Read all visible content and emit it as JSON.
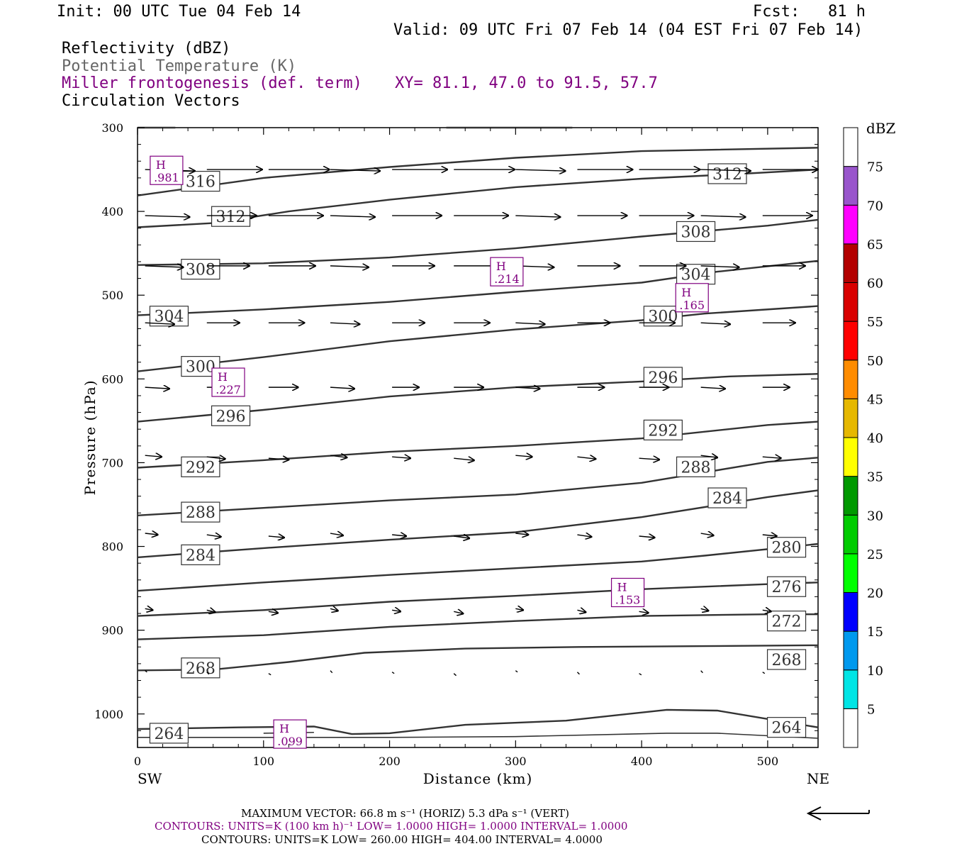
{
  "header": {
    "init": "Init: 00 UTC Tue 04 Feb 14",
    "fcst_label": "Fcst:",
    "fcst_value": "81 h",
    "valid": "Valid: 09 UTC Fri 07 Feb 14 (04 EST Fri 07 Feb 14)"
  },
  "fields": {
    "reflectivity": "Reflectivity (dBZ)",
    "theta": "Potential Temperature (K)",
    "miller": "Miller frontogenesis (def. term)",
    "xy": "XY=  81.1, 47.0 to  91.5, 57.7",
    "vectors": "Circulation Vectors"
  },
  "colors": {
    "contour": "#333333",
    "purple": "#800080",
    "theta_gray": "#666666"
  },
  "chart_data": {
    "type": "cross-section",
    "ylabel": "Pressure (hPa)",
    "xlabel": "Distance (km)",
    "x_left_label": "SW",
    "x_right_label": "NE",
    "xlim": [
      0,
      540
    ],
    "ylim": [
      300,
      1040
    ],
    "x_ticks": [
      0,
      100,
      200,
      300,
      400,
      500
    ],
    "y_ticks": [
      300,
      400,
      500,
      600,
      700,
      800,
      900,
      1000
    ],
    "theta_contours": [
      {
        "label": "316",
        "pts": [
          [
            0,
            381
          ],
          [
            100,
            360
          ],
          [
            200,
            347
          ],
          [
            300,
            336
          ],
          [
            400,
            328
          ],
          [
            540,
            324
          ]
        ],
        "boxes": [
          [
            50,
            364
          ]
        ]
      },
      {
        "label": "312",
        "pts": [
          [
            0,
            419
          ],
          [
            60,
            414
          ],
          [
            120,
            400
          ],
          [
            200,
            386
          ],
          [
            300,
            371
          ],
          [
            400,
            361
          ],
          [
            480,
            355
          ],
          [
            540,
            350
          ]
        ],
        "boxes": [
          [
            74,
            406
          ],
          [
            468,
            355
          ]
        ]
      },
      {
        "label": "308",
        "pts": [
          [
            0,
            464
          ],
          [
            100,
            462
          ],
          [
            200,
            455
          ],
          [
            300,
            444
          ],
          [
            400,
            430
          ],
          [
            500,
            417
          ],
          [
            540,
            410
          ]
        ],
        "boxes": [
          [
            50,
            469
          ],
          [
            443,
            424
          ]
        ]
      },
      {
        "label": "304",
        "pts": [
          [
            0,
            524
          ],
          [
            100,
            517
          ],
          [
            200,
            508
          ],
          [
            300,
            496
          ],
          [
            400,
            485
          ],
          [
            460,
            472
          ],
          [
            540,
            459
          ]
        ],
        "boxes": [
          [
            25,
            525
          ],
          [
            443,
            475
          ]
        ]
      },
      {
        "label": "300",
        "pts": [
          [
            0,
            591
          ],
          [
            100,
            574
          ],
          [
            200,
            555
          ],
          [
            300,
            541
          ],
          [
            400,
            530
          ],
          [
            450,
            522
          ],
          [
            540,
            513
          ]
        ],
        "boxes": [
          [
            50,
            585
          ],
          [
            417,
            525
          ]
        ]
      },
      {
        "label": "296",
        "pts": [
          [
            0,
            651
          ],
          [
            100,
            637
          ],
          [
            200,
            621
          ],
          [
            300,
            610
          ],
          [
            400,
            603
          ],
          [
            470,
            597
          ],
          [
            540,
            594
          ]
        ],
        "boxes": [
          [
            74,
            644
          ],
          [
            417,
            598
          ]
        ]
      },
      {
        "label": "292",
        "pts": [
          [
            0,
            706
          ],
          [
            100,
            697
          ],
          [
            200,
            687
          ],
          [
            300,
            680
          ],
          [
            400,
            671
          ],
          [
            500,
            655
          ],
          [
            540,
            651
          ]
        ],
        "boxes": [
          [
            50,
            705
          ],
          [
            417,
            661
          ]
        ]
      },
      {
        "label": "288",
        "pts": [
          [
            0,
            763
          ],
          [
            100,
            754
          ],
          [
            200,
            745
          ],
          [
            300,
            738
          ],
          [
            400,
            724
          ],
          [
            500,
            699
          ],
          [
            540,
            694
          ]
        ],
        "boxes": [
          [
            50,
            759
          ],
          [
            443,
            705
          ]
        ]
      },
      {
        "label": "284",
        "pts": [
          [
            0,
            813
          ],
          [
            100,
            802
          ],
          [
            200,
            792
          ],
          [
            300,
            783
          ],
          [
            400,
            765
          ],
          [
            500,
            741
          ],
          [
            540,
            733
          ]
        ],
        "boxes": [
          [
            50,
            810
          ],
          [
            468,
            742
          ]
        ]
      },
      {
        "label": "280",
        "pts": [
          [
            0,
            853
          ],
          [
            100,
            843
          ],
          [
            200,
            834
          ],
          [
            300,
            826
          ],
          [
            400,
            818
          ],
          [
            450,
            811
          ],
          [
            540,
            797
          ]
        ],
        "boxes": [
          [
            515,
            801
          ]
        ]
      },
      {
        "label": "276",
        "pts": [
          [
            0,
            883
          ],
          [
            100,
            876
          ],
          [
            200,
            866
          ],
          [
            300,
            859
          ],
          [
            400,
            851
          ],
          [
            500,
            845
          ],
          [
            540,
            843
          ]
        ],
        "boxes": [
          [
            515,
            848
          ]
        ]
      },
      {
        "label": "272",
        "pts": [
          [
            0,
            911
          ],
          [
            100,
            906
          ],
          [
            200,
            896
          ],
          [
            300,
            889
          ],
          [
            400,
            883
          ],
          [
            500,
            881
          ],
          [
            540,
            881
          ]
        ],
        "boxes": [
          [
            515,
            889
          ]
        ]
      },
      {
        "label": "268",
        "pts": [
          [
            0,
            948
          ],
          [
            60,
            947
          ],
          [
            120,
            938
          ],
          [
            180,
            927
          ],
          [
            260,
            922
          ],
          [
            350,
            920
          ],
          [
            450,
            919
          ],
          [
            540,
            918
          ]
        ],
        "boxes": [
          [
            50,
            945
          ],
          [
            515,
            935
          ]
        ]
      },
      {
        "label": "264",
        "pts": [
          [
            0,
            1018
          ],
          [
            80,
            1016
          ],
          [
            140,
            1015
          ],
          [
            170,
            1024
          ],
          [
            200,
            1023
          ],
          [
            260,
            1013
          ],
          [
            340,
            1008
          ],
          [
            420,
            995
          ],
          [
            460,
            996
          ],
          [
            540,
            1016
          ]
        ],
        "boxes": [
          [
            25,
            1023
          ],
          [
            515,
            1016
          ]
        ]
      }
    ],
    "miller_highs": [
      {
        "label": "H",
        "value": ".981",
        "x": 23,
        "p": 351
      },
      {
        "label": "H",
        "value": ".214",
        "x": 293,
        "p": 472
      },
      {
        "label": "H",
        "value": ".165",
        "x": 440,
        "p": 503
      },
      {
        "label": "H",
        "value": ".227",
        "x": 72,
        "p": 604
      },
      {
        "label": "H",
        "value": ".153",
        "x": 389,
        "p": 855
      },
      {
        "label": "H",
        "value": ".099",
        "x": 121,
        "p": 1024
      }
    ],
    "colorbar": {
      "unit": "dBZ",
      "levels": [
        "5",
        "10",
        "15",
        "20",
        "25",
        "30",
        "35",
        "40",
        "45",
        "50",
        "55",
        "60",
        "65",
        "70",
        "75"
      ],
      "colors": [
        "#00e5e5",
        "#0099ee",
        "#0000ff",
        "#00ff00",
        "#00cc00",
        "#009900",
        "#ffff00",
        "#e6b800",
        "#ff8c00",
        "#ff0000",
        "#d90000",
        "#b30000",
        "#ff00ff",
        "#9955cc",
        "#ffffff"
      ]
    }
  },
  "footer": {
    "max_vector": "MAXIMUM VECTOR:  66.8 m s⁻¹ (HORIZ)          5.3 dPa s⁻¹ (VERT)",
    "contours_purple": "CONTOURS:  UNITS=K (100 km h)⁻¹  LOW=   1.0000        HIGH=   1.0000        INTERVAL=    1.0000",
    "contours_black": "CONTOURS:  UNITS=K  LOW=   260.00        HIGH=   404.00        INTERVAL=     4.0000"
  }
}
